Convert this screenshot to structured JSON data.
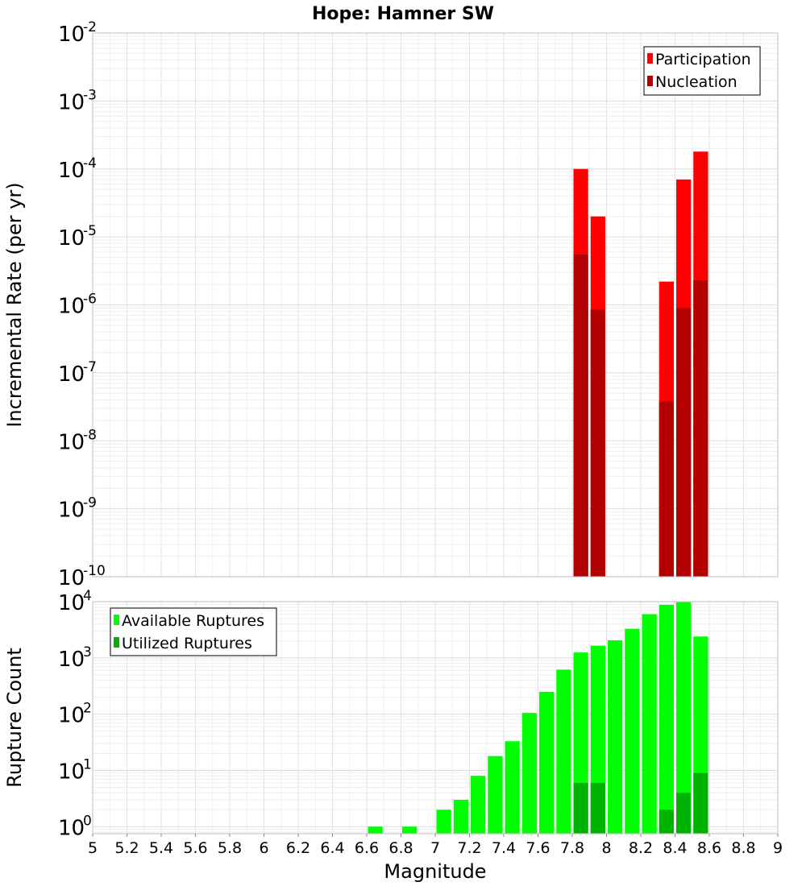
{
  "chart_data": [
    {
      "type": "bar",
      "title": "Hope: Hamner SW",
      "xlabel": "Magnitude",
      "ylabel": "Incremental Rate (per yr)",
      "yscale": "log",
      "xlim": [
        5,
        9
      ],
      "ylim": [
        1e-10,
        0.01
      ],
      "bin_width": 0.1,
      "ytick_exponents": [
        "-10",
        "-9",
        "-8",
        "-7",
        "-6",
        "-5",
        "-4",
        "-3",
        "-2"
      ],
      "legend_position": "top-right",
      "overlay": true,
      "series": [
        {
          "name": "Participation",
          "color": "#ff0000",
          "x": [
            7.85,
            7.95,
            8.35,
            8.45,
            8.55
          ],
          "values": [
            0.0001,
            2e-05,
            2.2e-06,
            7e-05,
            0.00018
          ]
        },
        {
          "name": "Nucleation",
          "color": "#b30000",
          "x": [
            7.85,
            7.95,
            8.35,
            8.45,
            8.55
          ],
          "values": [
            5.5e-06,
            8.5e-07,
            3.8e-08,
            9e-07,
            2.3e-06
          ]
        }
      ]
    },
    {
      "type": "bar",
      "title": "",
      "xlabel": "Magnitude",
      "ylabel": "Rupture Count",
      "yscale": "log",
      "xlim": [
        5,
        9
      ],
      "ylim": [
        0.75,
        10000
      ],
      "bin_width": 0.1,
      "ytick_exponents": [
        "0",
        "1",
        "2",
        "3",
        "4"
      ],
      "xtick_labels": [
        "5",
        "5.2",
        "5.4",
        "5.6",
        "5.8",
        "6",
        "6.2",
        "6.4",
        "6.6",
        "6.8",
        "7",
        "7.2",
        "7.4",
        "7.6",
        "7.8",
        "8",
        "8.2",
        "8.4",
        "8.6",
        "8.8",
        "9"
      ],
      "legend_position": "top-left",
      "overlay": true,
      "series": [
        {
          "name": "Available Ruptures",
          "color": "#00ff00",
          "x": [
            6.65,
            6.85,
            7.05,
            7.15,
            7.25,
            7.35,
            7.45,
            7.55,
            7.65,
            7.75,
            7.85,
            7.95,
            8.05,
            8.15,
            8.25,
            8.35,
            8.45,
            8.55
          ],
          "values": [
            1,
            1,
            2,
            3,
            8,
            18,
            33,
            105,
            250,
            620,
            1250,
            1650,
            2050,
            3300,
            6000,
            8800,
            9800,
            2400
          ]
        },
        {
          "name": "Utilized Ruptures",
          "color": "#00b300",
          "x": [
            7.85,
            7.95,
            8.35,
            8.45,
            8.55
          ],
          "values": [
            6,
            6,
            2,
            4,
            9
          ]
        }
      ]
    }
  ]
}
